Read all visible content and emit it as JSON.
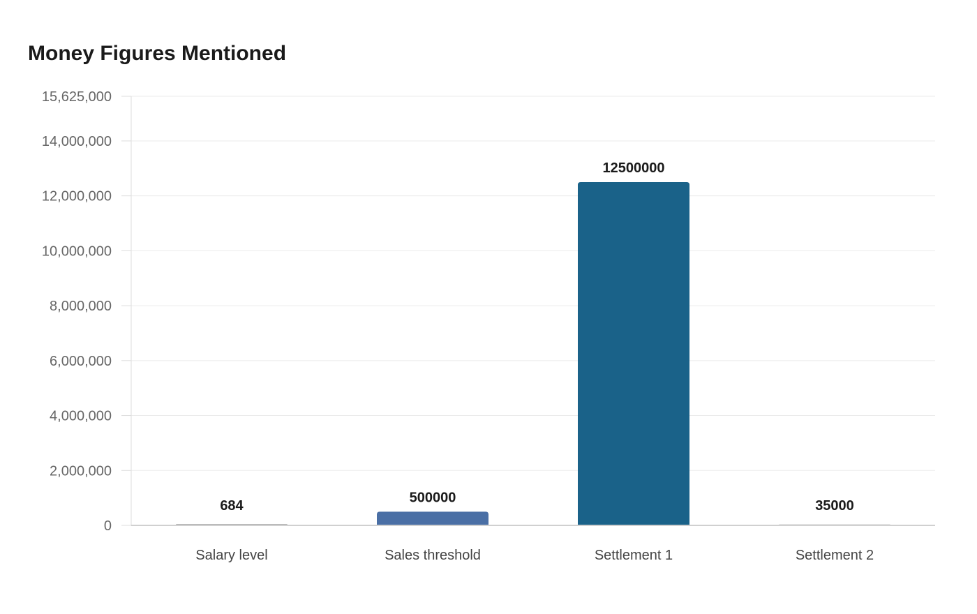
{
  "chart_data": {
    "type": "bar",
    "title": "Money Figures Mentioned",
    "xlabel": "",
    "ylabel": "",
    "categories": [
      "Salary level",
      "Sales threshold",
      "Settlement 1",
      "Settlement 2"
    ],
    "values": [
      684,
      500000,
      12500000,
      35000
    ],
    "data_labels": [
      "684",
      "500000",
      "12500000",
      "35000"
    ],
    "colors": [
      "#6b6b6b",
      "#4a6fa5",
      "#1a6289",
      "#c8c8c8"
    ],
    "ylim": [
      0,
      15625000
    ],
    "yticks": [
      0,
      2000000,
      4000000,
      6000000,
      8000000,
      10000000,
      12000000,
      14000000,
      15625000
    ],
    "ytick_labels": [
      "0",
      "2,000,000",
      "4,000,000",
      "6,000,000",
      "8,000,000",
      "10,000,000",
      "12,000,000",
      "14,000,000",
      "15,625,000"
    ],
    "grid": true,
    "legend": "none"
  }
}
